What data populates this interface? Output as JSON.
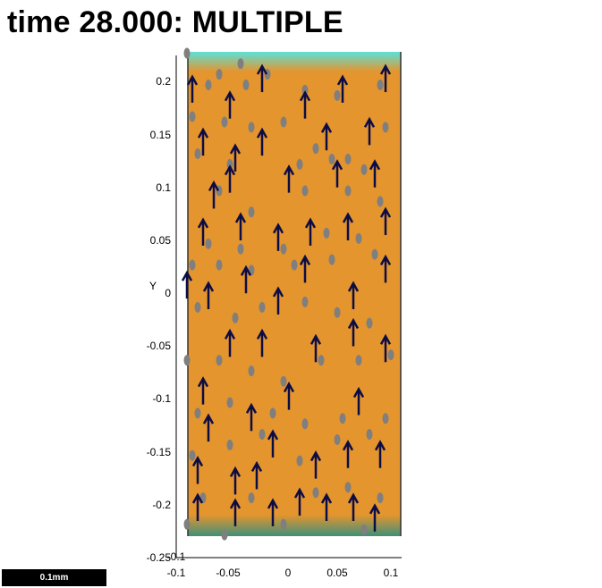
{
  "title": "time 28.000: MULTIPLE",
  "scale_bar_label": "0.1mm",
  "colors": {
    "fluid": "#e4952e",
    "top_band": "#5ce0d8",
    "bottom_band": "#3f8f7a",
    "arrow": "#0d0d45",
    "particle": "#7f7f7f"
  },
  "chart_data": {
    "type": "scatter",
    "title": "time 28.000: MULTIPLE",
    "xlabel": "",
    "ylabel": "Y",
    "xlim": [
      -0.1,
      0.1
    ],
    "ylim": [
      -0.25,
      0.21
    ],
    "x_ticks": [
      "-0.1",
      "-0.05",
      "0",
      "0.05",
      "0.1"
    ],
    "y_ticks": [
      "0.2",
      "0.15",
      "0.1",
      "0.05",
      "0",
      "-0.05",
      "-0.1",
      "-0.15",
      "-0.2",
      "-0.25"
    ],
    "extra_tick": "-0.1",
    "series": [
      {
        "marker": "arrow",
        "points": [
          [
            -0.085,
            0.195
          ],
          [
            -0.05,
            0.18
          ],
          [
            -0.02,
            0.205
          ],
          [
            0.02,
            0.18
          ],
          [
            0.055,
            0.195
          ],
          [
            0.095,
            0.205
          ],
          [
            -0.075,
            0.145
          ],
          [
            -0.045,
            0.13
          ],
          [
            -0.02,
            0.145
          ],
          [
            0.04,
            0.15
          ],
          [
            0.08,
            0.155
          ],
          [
            0.005,
            0.11
          ],
          [
            -0.065,
            0.095
          ],
          [
            -0.05,
            0.11
          ],
          [
            0.05,
            0.115
          ],
          [
            0.085,
            0.115
          ],
          [
            -0.075,
            0.06
          ],
          [
            -0.04,
            0.065
          ],
          [
            -0.005,
            0.055
          ],
          [
            0.025,
            0.06
          ],
          [
            0.06,
            0.065
          ],
          [
            0.095,
            0.07
          ],
          [
            -0.09,
            0.01
          ],
          [
            -0.07,
            0.0
          ],
          [
            -0.035,
            0.015
          ],
          [
            -0.005,
            -0.005
          ],
          [
            0.02,
            0.025
          ],
          [
            0.065,
            0.0
          ],
          [
            0.095,
            0.025
          ],
          [
            -0.05,
            -0.045
          ],
          [
            -0.02,
            -0.045
          ],
          [
            0.03,
            -0.05
          ],
          [
            0.065,
            -0.035
          ],
          [
            0.095,
            -0.05
          ],
          [
            -0.075,
            -0.09
          ],
          [
            -0.07,
            -0.125
          ],
          [
            -0.03,
            -0.115
          ],
          [
            0.005,
            -0.095
          ],
          [
            0.07,
            -0.1
          ],
          [
            -0.08,
            -0.165
          ],
          [
            -0.045,
            -0.175
          ],
          [
            -0.025,
            -0.17
          ],
          [
            -0.01,
            -0.14
          ],
          [
            0.03,
            -0.16
          ],
          [
            0.06,
            -0.15
          ],
          [
            0.09,
            -0.15
          ],
          [
            -0.08,
            -0.2
          ],
          [
            -0.045,
            -0.205
          ],
          [
            -0.01,
            -0.205
          ],
          [
            0.015,
            -0.195
          ],
          [
            0.04,
            -0.2
          ],
          [
            0.065,
            -0.2
          ],
          [
            0.085,
            -0.21
          ]
        ]
      },
      {
        "marker": "dot",
        "points": [
          [
            -0.09,
            0.23
          ],
          [
            -0.07,
            0.2
          ],
          [
            -0.06,
            0.21
          ],
          [
            -0.04,
            0.22
          ],
          [
            -0.035,
            0.2
          ],
          [
            -0.015,
            0.21
          ],
          [
            0.02,
            0.195
          ],
          [
            0.05,
            0.19
          ],
          [
            0.09,
            0.2
          ],
          [
            -0.085,
            0.17
          ],
          [
            -0.055,
            0.165
          ],
          [
            -0.03,
            0.16
          ],
          [
            0.0,
            0.165
          ],
          [
            0.03,
            0.14
          ],
          [
            0.06,
            0.13
          ],
          [
            0.095,
            0.16
          ],
          [
            -0.08,
            0.135
          ],
          [
            -0.05,
            0.125
          ],
          [
            0.015,
            0.125
          ],
          [
            0.045,
            0.13
          ],
          [
            0.075,
            0.12
          ],
          [
            -0.06,
            0.1
          ],
          [
            -0.03,
            0.08
          ],
          [
            0.02,
            0.1
          ],
          [
            0.06,
            0.1
          ],
          [
            0.09,
            0.09
          ],
          [
            -0.07,
            0.05
          ],
          [
            -0.04,
            0.045
          ],
          [
            0.0,
            0.045
          ],
          [
            0.04,
            0.06
          ],
          [
            0.07,
            0.055
          ],
          [
            -0.085,
            0.03
          ],
          [
            -0.06,
            0.03
          ],
          [
            -0.03,
            0.025
          ],
          [
            0.01,
            0.03
          ],
          [
            0.045,
            0.035
          ],
          [
            0.085,
            0.04
          ],
          [
            -0.08,
            -0.01
          ],
          [
            -0.045,
            -0.02
          ],
          [
            -0.02,
            -0.01
          ],
          [
            0.02,
            -0.005
          ],
          [
            0.05,
            -0.015
          ],
          [
            0.08,
            -0.025
          ],
          [
            -0.09,
            -0.06
          ],
          [
            -0.06,
            -0.06
          ],
          [
            -0.03,
            -0.07
          ],
          [
            0.0,
            -0.08
          ],
          [
            0.035,
            -0.06
          ],
          [
            0.07,
            -0.06
          ],
          [
            0.1,
            -0.055
          ],
          [
            -0.08,
            -0.11
          ],
          [
            -0.05,
            -0.1
          ],
          [
            -0.01,
            -0.11
          ],
          [
            0.02,
            -0.12
          ],
          [
            0.055,
            -0.115
          ],
          [
            0.095,
            -0.115
          ],
          [
            -0.085,
            -0.15
          ],
          [
            -0.05,
            -0.14
          ],
          [
            -0.02,
            -0.13
          ],
          [
            0.015,
            -0.155
          ],
          [
            0.05,
            -0.135
          ],
          [
            0.08,
            -0.13
          ],
          [
            -0.075,
            -0.19
          ],
          [
            -0.03,
            -0.19
          ],
          [
            0.0,
            -0.215
          ],
          [
            0.03,
            -0.185
          ],
          [
            0.06,
            -0.18
          ],
          [
            0.09,
            -0.19
          ],
          [
            -0.09,
            -0.215
          ],
          [
            0.075,
            -0.22
          ],
          [
            -0.055,
            -0.225
          ]
        ]
      }
    ],
    "grid": false,
    "legend": "none"
  }
}
